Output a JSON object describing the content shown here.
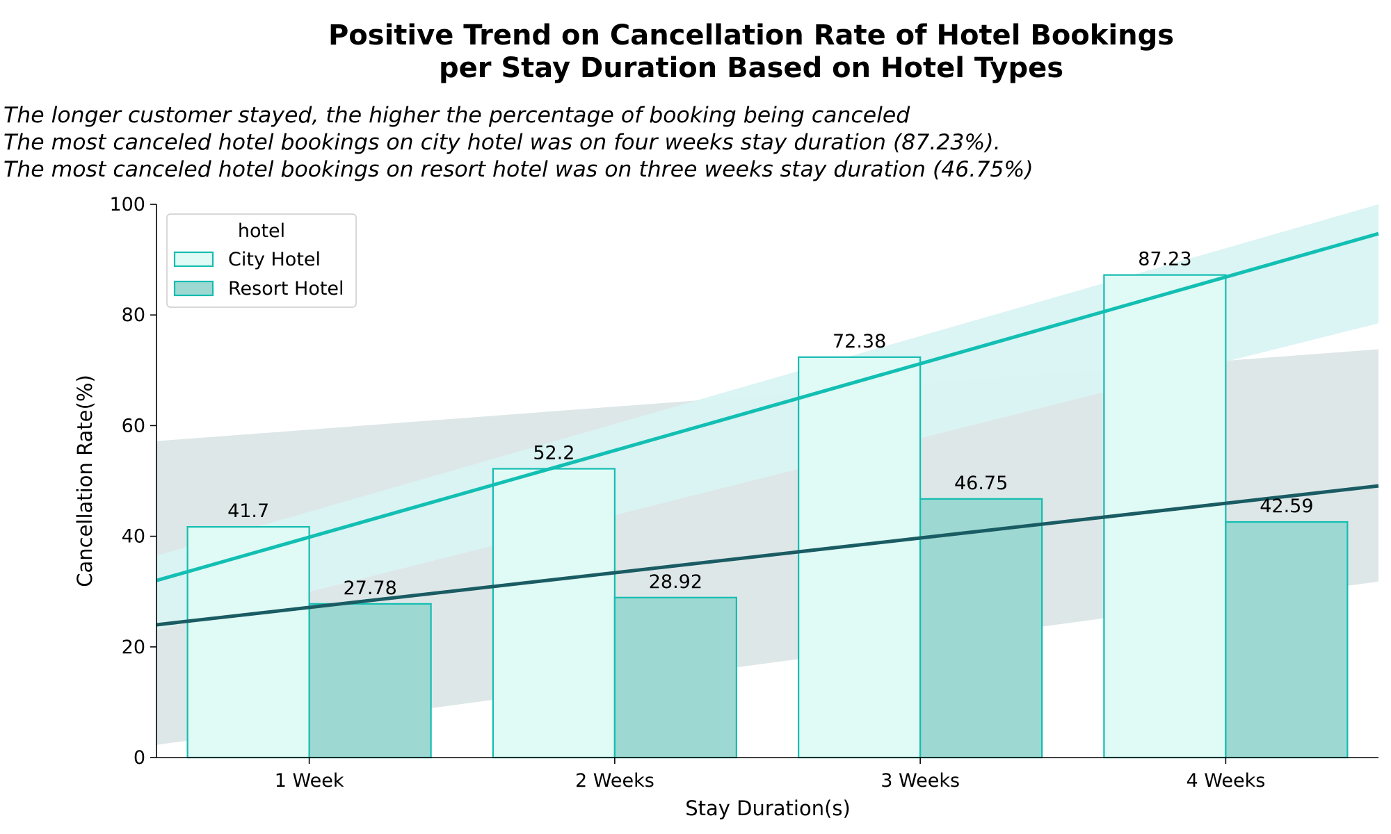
{
  "chart_data": {
    "type": "bar",
    "title_lines": [
      "Positive Trend on Cancellation Rate of Hotel Bookings",
      "per Stay Duration Based on Hotel Types"
    ],
    "subtitle_lines": [
      "The longer customer stayed, the higher the percentage of booking being canceled",
      "The most canceled hotel bookings on city hotel was on four weeks stay duration (87.23%).",
      "The most canceled hotel bookings on resort hotel was on three weeks stay duration (46.75%)"
    ],
    "xlabel": "Stay Duration(s)",
    "ylabel": "Cancellation Rate(%)",
    "categories": [
      "1 Week",
      "2 Weeks",
      "3 Weeks",
      "4 Weeks"
    ],
    "ylim": [
      0,
      100
    ],
    "yticks": [
      0,
      20,
      40,
      60,
      80,
      100
    ],
    "legend": {
      "title": "hotel",
      "position": "upper-left"
    },
    "series": [
      {
        "name": "City Hotel",
        "values": [
          41.7,
          52.2,
          72.38,
          87.23
        ],
        "value_labels": [
          "41.7",
          "52.2",
          "72.38",
          "87.23"
        ],
        "fill": "#e0faf5",
        "edge": "#14bdb0",
        "trend": {
          "color": "#12bfb2",
          "band_color": "#d9f3f3",
          "start": 32.0,
          "end": 94.7,
          "band_start": [
            23,
            36.5
          ],
          "band_end": [
            78.5,
            100
          ]
        }
      },
      {
        "name": "Resort Hotel",
        "values": [
          27.78,
          28.92,
          46.75,
          42.59
        ],
        "value_labels": [
          "27.78",
          "28.92",
          "46.75",
          "42.59"
        ],
        "fill": "#9dd8d2",
        "edge": "#14bdb0",
        "trend": {
          "color": "#1a5c63",
          "band_color": "#dce6e7",
          "start": 24.0,
          "end": 49.1,
          "band_start": [
            2.3,
            57.2
          ],
          "band_end": [
            31.8,
            73.8
          ]
        }
      }
    ],
    "grid": false
  }
}
